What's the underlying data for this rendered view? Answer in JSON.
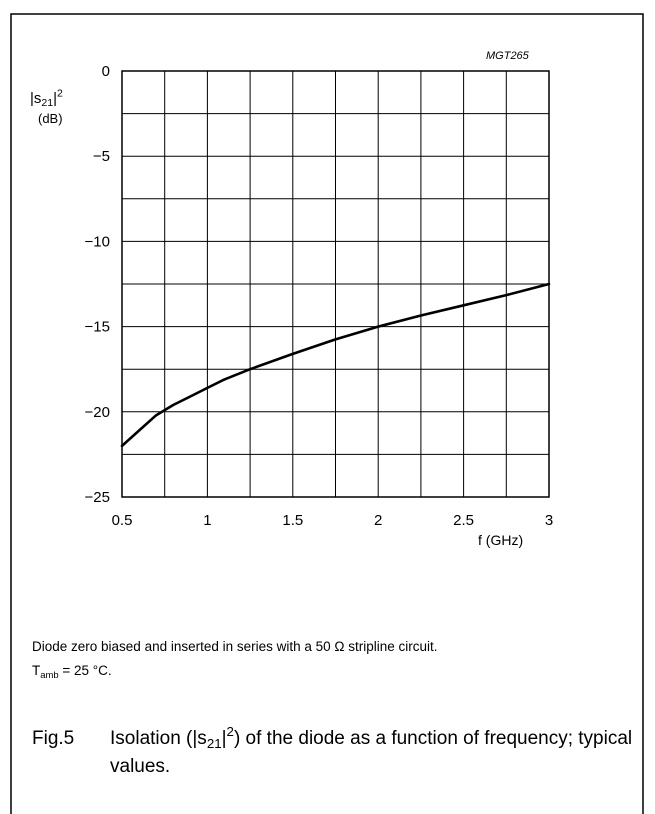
{
  "chart_data": {
    "type": "line",
    "figure_code": "MGT265",
    "ylabel": "|s21|2",
    "ylabel_unit": "(dB)",
    "xlabel": "f (GHz)",
    "xlim": [
      0.5,
      3
    ],
    "ylim": [
      -25,
      0
    ],
    "x_ticks": [
      0.5,
      1,
      1.5,
      2,
      2.5,
      3
    ],
    "x_tick_labels": [
      "0.5",
      "1",
      "1.5",
      "2",
      "2.5",
      "3"
    ],
    "y_ticks": [
      0,
      -5,
      -10,
      -15,
      -20,
      -25
    ],
    "y_tick_labels": [
      "0",
      "−5",
      "−10",
      "−15",
      "−20",
      "−25"
    ],
    "x_grid": [
      0.5,
      0.75,
      1,
      1.25,
      1.5,
      1.75,
      2,
      2.25,
      2.5,
      2.75,
      3
    ],
    "y_grid": [
      0,
      -2.5,
      -5,
      -7.5,
      -10,
      -12.5,
      -15,
      -17.5,
      -20,
      -22.5,
      -25
    ],
    "grid": true,
    "series": [
      {
        "x": [
          0.5,
          0.6,
          0.7,
          0.75,
          0.8,
          0.9,
          1.0,
          1.1,
          1.25,
          1.5,
          1.75,
          2.0,
          2.25,
          2.5,
          2.75,
          3.0
        ],
        "y": [
          -22.0,
          -21.1,
          -20.2,
          -19.9,
          -19.6,
          -19.1,
          -18.6,
          -18.1,
          -17.5,
          -16.6,
          -15.75,
          -15.0,
          -14.35,
          -13.75,
          -13.15,
          -12.5
        ]
      }
    ]
  },
  "note": {
    "line1": "Diode zero biased and inserted in series with a 50 Ω stripline circuit.",
    "tamb_symbol": "T",
    "tamb_sub": "amb",
    "tamb_value": " = 25 °C."
  },
  "caption": {
    "fig_number": "Fig.5",
    "text_before": "Isolation (|s",
    "text_sub": "21",
    "text_mid": "|",
    "text_sup": "2",
    "text_after": ") of the diode as a function of frequency; typical values."
  }
}
